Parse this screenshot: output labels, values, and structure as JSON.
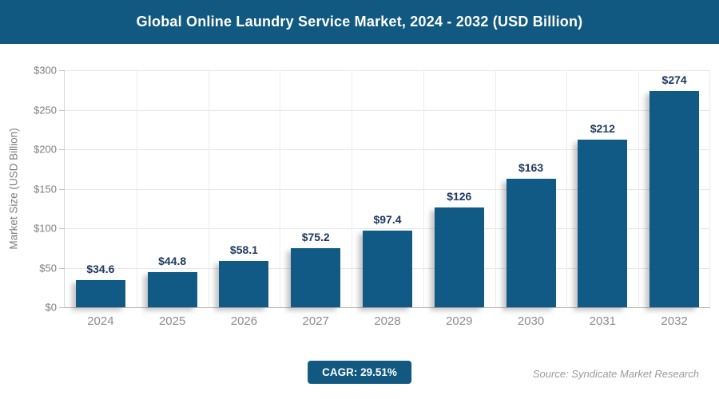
{
  "header": {
    "title": "Global Online Laundry Service Market, 2024 - 2032 (USD Billion)"
  },
  "chart_data": {
    "type": "bar",
    "title": "Global Online Laundry Service Market, 2024 - 2032 (USD Billion)",
    "categories": [
      "2024",
      "2025",
      "2026",
      "2027",
      "2028",
      "2029",
      "2030",
      "2031",
      "2032"
    ],
    "values": [
      34.6,
      44.8,
      58.1,
      75.2,
      97.4,
      126,
      163,
      212,
      274
    ],
    "bar_labels": [
      "$34.6",
      "$44.8",
      "$58.1",
      "$75.2",
      "$97.4",
      "$126",
      "$163",
      "$212",
      "$274"
    ],
    "xlabel": "",
    "ylabel": "Market Size (USD Billion)",
    "ylim": [
      0,
      300
    ],
    "ytick_step": 50,
    "ytick_labels": [
      "$0",
      "$50",
      "$100",
      "$150",
      "$200",
      "$250",
      "$300"
    ],
    "grid": true,
    "legend": false
  },
  "footer": {
    "cagr_label": "CAGR: 29.51%",
    "source": "Source: Syndicate Market Research"
  },
  "colors": {
    "header_bg": "#115980",
    "bar": "#115a86",
    "data_label_text": "#1f3a60",
    "axis_text": "#808080",
    "gridline": "#e7e7e7"
  }
}
